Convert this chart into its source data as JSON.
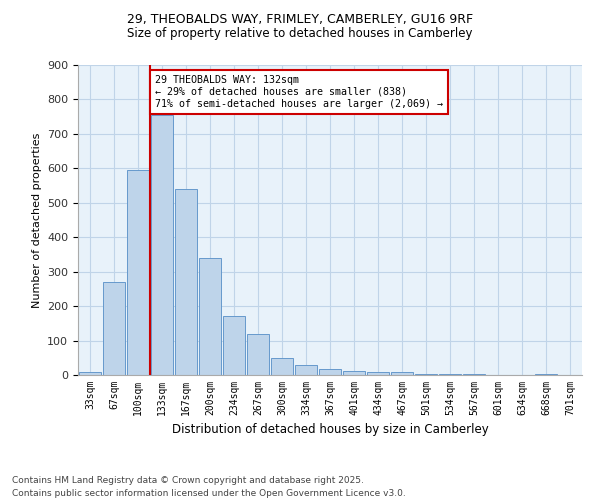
{
  "title_line1": "29, THEOBALDS WAY, FRIMLEY, CAMBERLEY, GU16 9RF",
  "title_line2": "Size of property relative to detached houses in Camberley",
  "xlabel": "Distribution of detached houses by size in Camberley",
  "ylabel": "Number of detached properties",
  "categories": [
    "33sqm",
    "67sqm",
    "100sqm",
    "133sqm",
    "167sqm",
    "200sqm",
    "234sqm",
    "267sqm",
    "300sqm",
    "334sqm",
    "367sqm",
    "401sqm",
    "434sqm",
    "467sqm",
    "501sqm",
    "534sqm",
    "567sqm",
    "601sqm",
    "634sqm",
    "668sqm",
    "701sqm"
  ],
  "values": [
    8,
    270,
    595,
    755,
    540,
    340,
    170,
    120,
    48,
    28,
    18,
    12,
    8,
    8,
    4,
    4,
    2,
    0,
    0,
    2,
    0
  ],
  "bar_color": "#bed4ea",
  "bar_edge_color": "#6699cc",
  "grid_color": "#c0d4e8",
  "bg_color": "#e8f2fa",
  "vline_color": "#cc0000",
  "annotation_text": "29 THEOBALDS WAY: 132sqm\n← 29% of detached houses are smaller (838)\n71% of semi-detached houses are larger (2,069) →",
  "annotation_box_color": "#cc0000",
  "footer_line1": "Contains HM Land Registry data © Crown copyright and database right 2025.",
  "footer_line2": "Contains public sector information licensed under the Open Government Licence v3.0.",
  "ylim": [
    0,
    900
  ],
  "yticks": [
    0,
    100,
    200,
    300,
    400,
    500,
    600,
    700,
    800,
    900
  ]
}
